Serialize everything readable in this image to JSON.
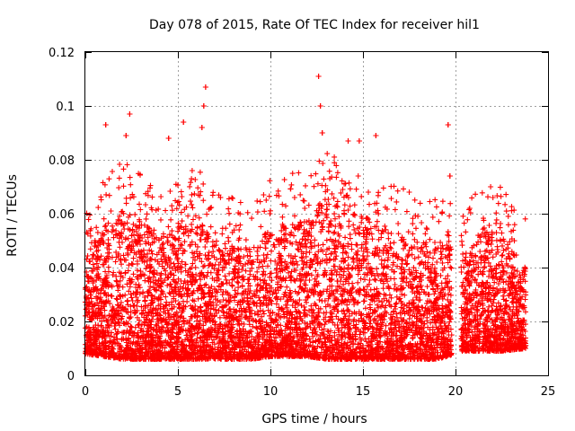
{
  "colors": {
    "series": "#ff0000",
    "grid": "#a0a0a0",
    "axis": "#000000",
    "background": "#ffffff"
  },
  "chart_data": {
    "type": "scatter",
    "title": "Day 078 of 2015, Rate Of TEC Index for receiver hil1",
    "xlabel": "GPS time / hours",
    "ylabel": "ROTI / TECUs",
    "xlim": [
      0,
      25
    ],
    "ylim": [
      0,
      0.12
    ],
    "xticks": [
      0,
      5,
      10,
      15,
      20,
      25
    ],
    "xtick_labels": [
      "0",
      "5",
      "10",
      "15",
      "20",
      "25"
    ],
    "yticks": [
      0,
      0.02,
      0.04,
      0.06,
      0.08,
      0.1,
      0.12
    ],
    "ytick_labels": [
      "0",
      "0.02",
      "0.04",
      "0.06",
      "0.08",
      "0.1",
      "0.12"
    ],
    "grid": true,
    "marker": "+",
    "series": [
      {
        "name": "ROTI",
        "data_range_x": [
          0,
          23.8
        ],
        "gap_x": [
          19.8,
          20.3
        ],
        "bulk_envelope": [
          {
            "x": 0.0,
            "lo": 0.008,
            "hi": 0.045
          },
          {
            "x": 1.0,
            "lo": 0.007,
            "hi": 0.055
          },
          {
            "x": 2.0,
            "lo": 0.006,
            "hi": 0.062
          },
          {
            "x": 3.0,
            "lo": 0.006,
            "hi": 0.058
          },
          {
            "x": 4.0,
            "lo": 0.006,
            "hi": 0.052
          },
          {
            "x": 5.0,
            "lo": 0.006,
            "hi": 0.055
          },
          {
            "x": 6.0,
            "lo": 0.006,
            "hi": 0.06
          },
          {
            "x": 7.0,
            "lo": 0.006,
            "hi": 0.05
          },
          {
            "x": 8.0,
            "lo": 0.006,
            "hi": 0.048
          },
          {
            "x": 9.0,
            "lo": 0.006,
            "hi": 0.047
          },
          {
            "x": 10.0,
            "lo": 0.007,
            "hi": 0.055
          },
          {
            "x": 11.0,
            "lo": 0.007,
            "hi": 0.057
          },
          {
            "x": 12.0,
            "lo": 0.007,
            "hi": 0.058
          },
          {
            "x": 13.0,
            "lo": 0.006,
            "hi": 0.065
          },
          {
            "x": 14.0,
            "lo": 0.006,
            "hi": 0.062
          },
          {
            "x": 15.0,
            "lo": 0.006,
            "hi": 0.06
          },
          {
            "x": 16.0,
            "lo": 0.006,
            "hi": 0.055
          },
          {
            "x": 17.0,
            "lo": 0.006,
            "hi": 0.052
          },
          {
            "x": 18.0,
            "lo": 0.006,
            "hi": 0.05
          },
          {
            "x": 19.0,
            "lo": 0.006,
            "hi": 0.05
          },
          {
            "x": 20.5,
            "lo": 0.009,
            "hi": 0.045
          },
          {
            "x": 21.5,
            "lo": 0.009,
            "hi": 0.055
          },
          {
            "x": 22.5,
            "lo": 0.009,
            "hi": 0.052
          },
          {
            "x": 23.8,
            "lo": 0.01,
            "hi": 0.04
          }
        ],
        "notable_points": [
          {
            "x": 1.1,
            "y": 0.093
          },
          {
            "x": 2.2,
            "y": 0.089
          },
          {
            "x": 2.4,
            "y": 0.097
          },
          {
            "x": 4.5,
            "y": 0.088
          },
          {
            "x": 5.3,
            "y": 0.094
          },
          {
            "x": 6.3,
            "y": 0.092
          },
          {
            "x": 6.4,
            "y": 0.1
          },
          {
            "x": 6.5,
            "y": 0.107
          },
          {
            "x": 12.6,
            "y": 0.111
          },
          {
            "x": 12.7,
            "y": 0.1
          },
          {
            "x": 12.8,
            "y": 0.09
          },
          {
            "x": 14.2,
            "y": 0.087
          },
          {
            "x": 14.8,
            "y": 0.087
          },
          {
            "x": 15.7,
            "y": 0.089
          },
          {
            "x": 19.6,
            "y": 0.093
          },
          {
            "x": 19.7,
            "y": 0.074
          }
        ]
      }
    ]
  }
}
